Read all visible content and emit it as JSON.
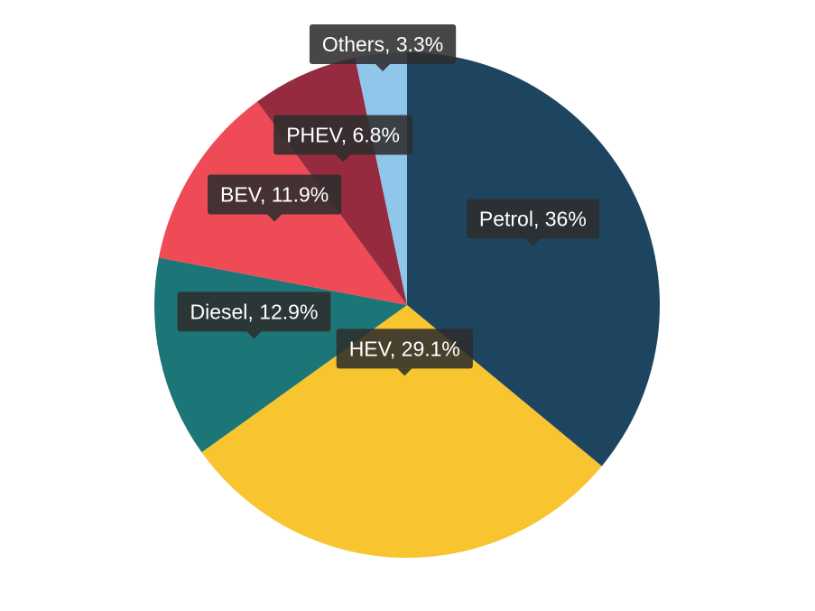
{
  "chart_data": {
    "type": "pie",
    "title": "",
    "slices": [
      {
        "label": "Petrol",
        "value": 36,
        "display": "Petrol, 36%",
        "color": "#1e4560"
      },
      {
        "label": "HEV",
        "value": 29.1,
        "display": "HEV, 29.1%",
        "color": "#f8c42f"
      },
      {
        "label": "Diesel",
        "value": 12.9,
        "display": "Diesel, 12.9%",
        "color": "#1c7677"
      },
      {
        "label": "BEV",
        "value": 11.9,
        "display": "BEV, 11.9%",
        "color": "#ee4b57"
      },
      {
        "label": "PHEV",
        "value": 6.8,
        "display": "PHEV, 6.8%",
        "color": "#962a3f"
      },
      {
        "label": "Others",
        "value": 3.3,
        "display": "Others, 3.3%",
        "color": "#90c6ea"
      }
    ],
    "start_angle": "12 o'clock",
    "direction": "clockwise",
    "legend": "none"
  }
}
